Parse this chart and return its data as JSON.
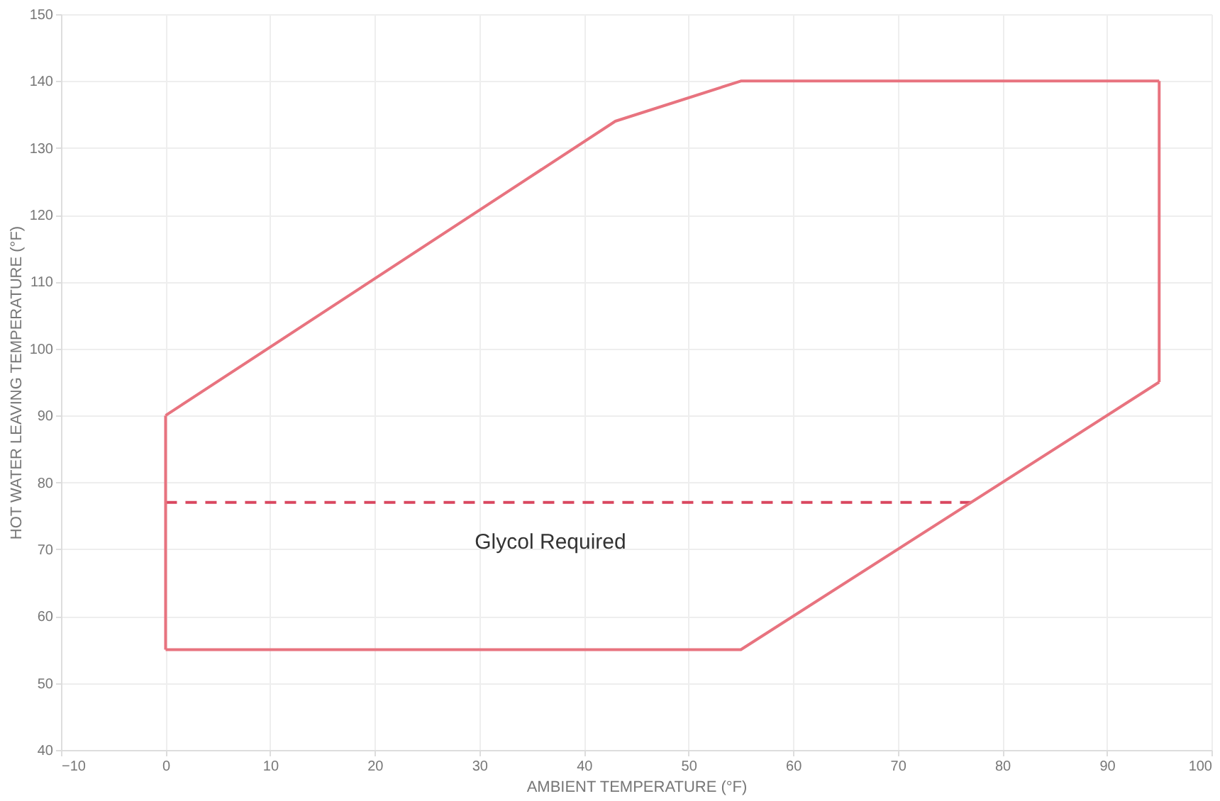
{
  "chart_data": {
    "type": "line",
    "xlabel": "AMBIENT TEMPERATURE (°F)",
    "ylabel": "HOT WATER LEAVING TEMPERATURE (°F)",
    "xlim": [
      -10,
      100
    ],
    "xticks": [
      -10,
      0,
      10,
      20,
      30,
      40,
      50,
      60,
      70,
      80,
      90,
      100
    ],
    "ylim": [
      40,
      150
    ],
    "yticks": [
      40,
      50,
      60,
      70,
      80,
      90,
      100,
      110,
      120,
      130,
      140,
      150
    ],
    "grid": true,
    "marker": "none",
    "series": [
      {
        "x": [
          0,
          77
        ],
        "values": [
          77,
          77
        ],
        "color": "#d9475f",
        "line_style": "dashed"
      },
      {
        "x": [
          0,
          43,
          55,
          95
        ],
        "values": [
          90,
          134,
          140,
          140
        ],
        "color": "#e8737f",
        "line_style": "solid"
      },
      {
        "x": [
          0,
          55,
          95
        ],
        "values": [
          55,
          55,
          95
        ],
        "color": "#e8737f",
        "line_style": "solid"
      },
      {
        "x": [
          0,
          0
        ],
        "values": [
          55,
          90
        ],
        "color": "#e8737f",
        "line_style": "solid"
      },
      {
        "x": [
          95,
          95
        ],
        "values": [
          95,
          140
        ],
        "color": "#e8737f",
        "line_style": "solid"
      }
    ],
    "annotations": [
      "Glycol Required"
    ]
  }
}
